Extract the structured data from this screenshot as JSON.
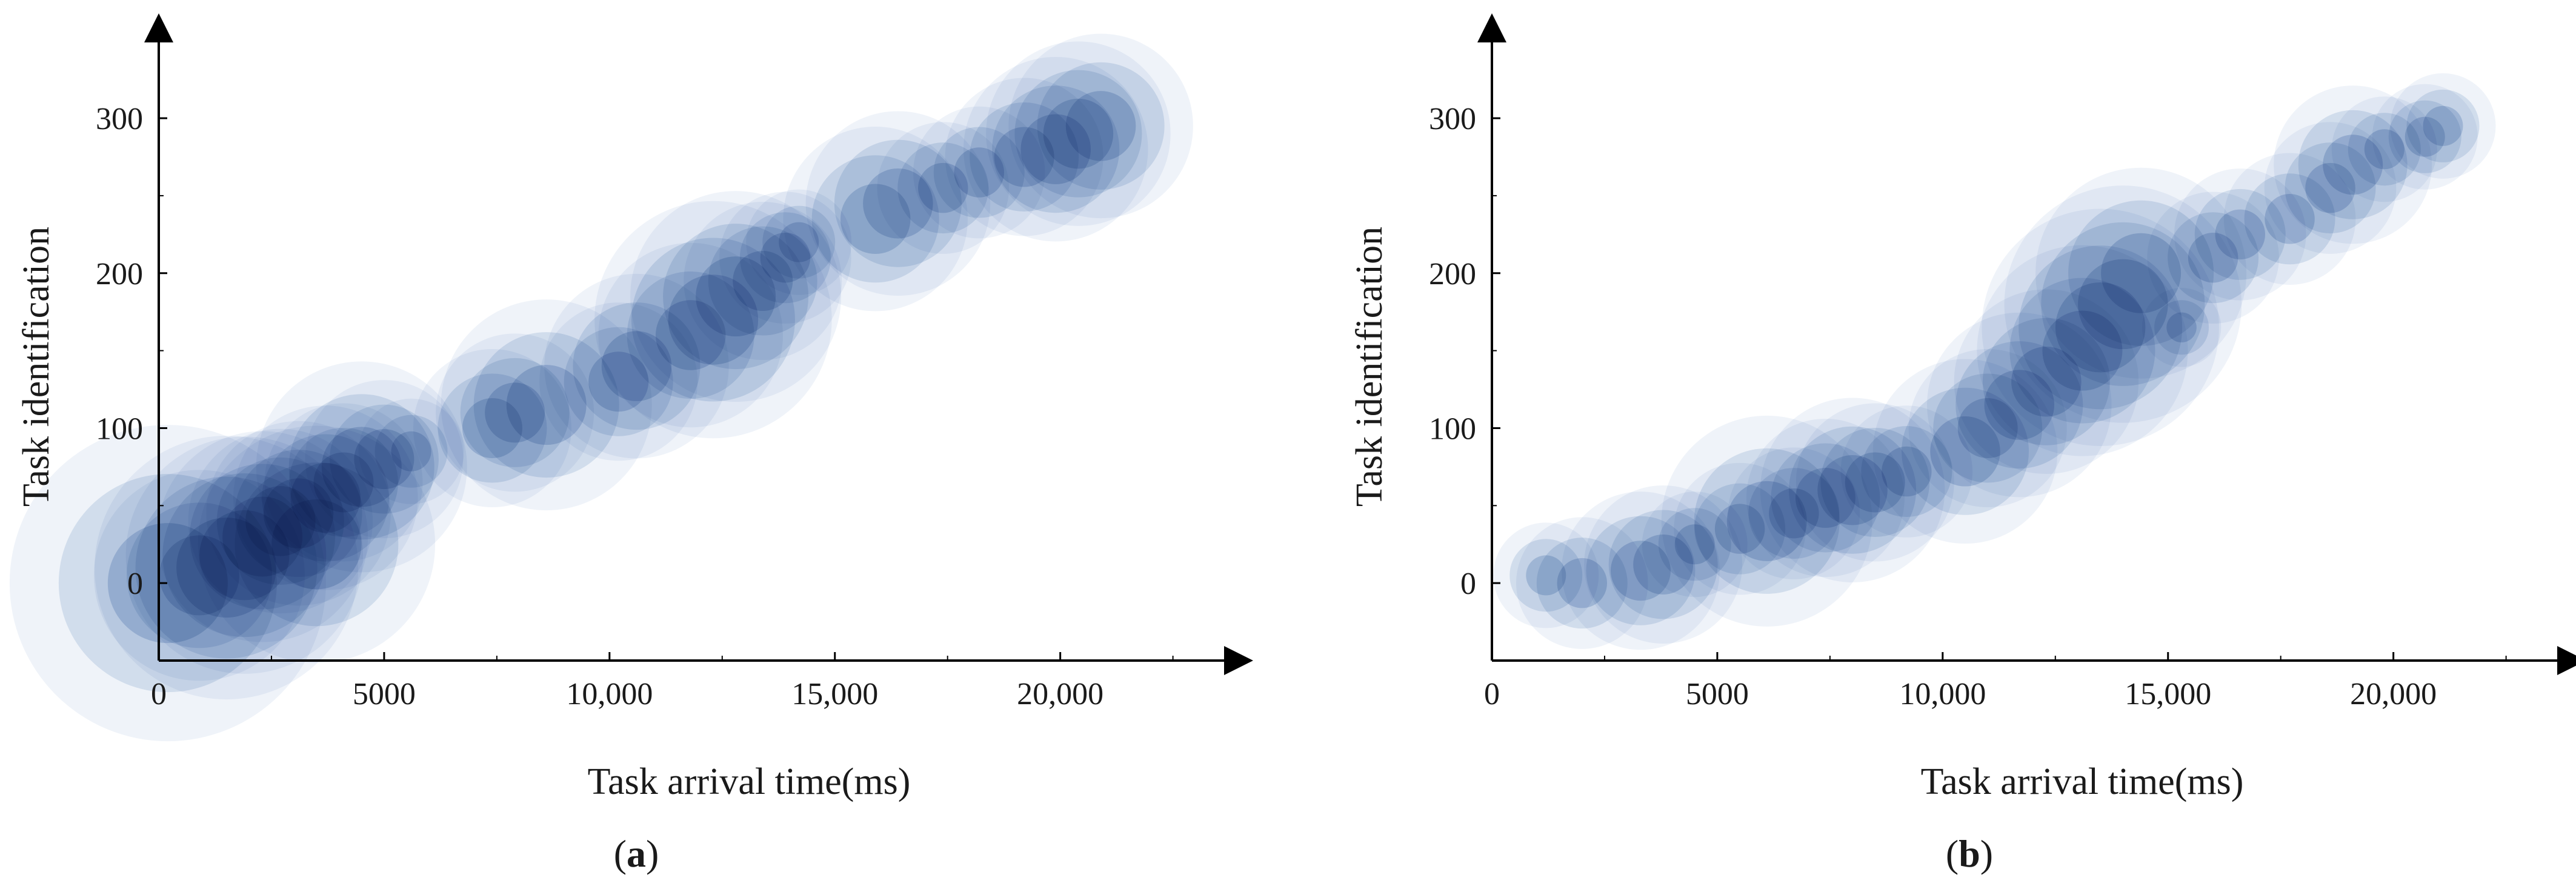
{
  "colors": {
    "bubble_fill": "#1f5aa6",
    "axis": "#000000",
    "text": "#1a1a1a"
  },
  "chart_data": [
    {
      "type": "scatter",
      "panel_label": "(a)",
      "panel_letter": "a",
      "xlabel": "Task arrival time(ms)",
      "ylabel": "Task identification",
      "xlim": [
        0,
        23500
      ],
      "ylim": [
        -50,
        345
      ],
      "x_ticks": [
        0,
        5000,
        10000,
        15000,
        20000
      ],
      "x_tick_labels": [
        "0",
        "5000",
        "10,000",
        "15,000",
        "20,000"
      ],
      "y_ticks": [
        0,
        100,
        200,
        300
      ],
      "y_tick_labels": [
        "0",
        "100",
        "200",
        "300"
      ],
      "grid": false,
      "legend": "none",
      "marker": "bubble",
      "points": [
        {
          "x": 200,
          "y": 0,
          "r": 60
        },
        {
          "x": 900,
          "y": 5,
          "r": 40
        },
        {
          "x": 1500,
          "y": 10,
          "r": 50
        },
        {
          "x": 1900,
          "y": 18,
          "r": 45
        },
        {
          "x": 2300,
          "y": 30,
          "r": 40
        },
        {
          "x": 2700,
          "y": 40,
          "r": 35
        },
        {
          "x": 3100,
          "y": 45,
          "r": 35
        },
        {
          "x": 3500,
          "y": 25,
          "r": 45
        },
        {
          "x": 3700,
          "y": 55,
          "r": 35
        },
        {
          "x": 4100,
          "y": 65,
          "r": 30
        },
        {
          "x": 4500,
          "y": 75,
          "r": 40
        },
        {
          "x": 5000,
          "y": 80,
          "r": 30
        },
        {
          "x": 5600,
          "y": 85,
          "r": 20
        },
        {
          "x": 7400,
          "y": 100,
          "r": 30
        },
        {
          "x": 7900,
          "y": 110,
          "r": 30
        },
        {
          "x": 8600,
          "y": 115,
          "r": 40
        },
        {
          "x": 10200,
          "y": 130,
          "r": 30
        },
        {
          "x": 10600,
          "y": 140,
          "r": 35
        },
        {
          "x": 11800,
          "y": 160,
          "r": 35
        },
        {
          "x": 12300,
          "y": 170,
          "r": 45
        },
        {
          "x": 12800,
          "y": 185,
          "r": 40
        },
        {
          "x": 13400,
          "y": 195,
          "r": 30
        },
        {
          "x": 13900,
          "y": 210,
          "r": 25
        },
        {
          "x": 14200,
          "y": 220,
          "r": 20
        },
        {
          "x": 15900,
          "y": 235,
          "r": 35
        },
        {
          "x": 16400,
          "y": 245,
          "r": 35
        },
        {
          "x": 17400,
          "y": 255,
          "r": 25
        },
        {
          "x": 18200,
          "y": 265,
          "r": 25
        },
        {
          "x": 19200,
          "y": 275,
          "r": 30
        },
        {
          "x": 19900,
          "y": 280,
          "r": 35
        },
        {
          "x": 20400,
          "y": 290,
          "r": 35
        },
        {
          "x": 20900,
          "y": 295,
          "r": 35
        }
      ]
    },
    {
      "type": "scatter",
      "panel_label": "(b)",
      "panel_letter": "b",
      "xlabel": "Task arrival time(ms)",
      "ylabel": "Task identification",
      "xlim": [
        0,
        23500
      ],
      "ylim": [
        -50,
        345
      ],
      "x_ticks": [
        0,
        5000,
        10000,
        15000,
        20000
      ],
      "x_tick_labels": [
        "0",
        "5000",
        "10,000",
        "15,000",
        "20,000"
      ],
      "y_ticks": [
        0,
        100,
        200,
        300
      ],
      "y_tick_labels": [
        "0",
        "100",
        "200",
        "300"
      ],
      "grid": false,
      "legend": "none",
      "marker": "bubble",
      "points": [
        {
          "x": 1200,
          "y": 5,
          "r": 20
        },
        {
          "x": 2000,
          "y": 0,
          "r": 25
        },
        {
          "x": 3300,
          "y": 8,
          "r": 30
        },
        {
          "x": 3800,
          "y": 12,
          "r": 30
        },
        {
          "x": 4500,
          "y": 25,
          "r": 20
        },
        {
          "x": 5500,
          "y": 35,
          "r": 25
        },
        {
          "x": 6100,
          "y": 40,
          "r": 40
        },
        {
          "x": 6700,
          "y": 45,
          "r": 25
        },
        {
          "x": 7400,
          "y": 55,
          "r": 30
        },
        {
          "x": 8000,
          "y": 60,
          "r": 35
        },
        {
          "x": 8500,
          "y": 65,
          "r": 30
        },
        {
          "x": 9200,
          "y": 72,
          "r": 25
        },
        {
          "x": 10500,
          "y": 85,
          "r": 35
        },
        {
          "x": 11000,
          "y": 100,
          "r": 30
        },
        {
          "x": 11700,
          "y": 115,
          "r": 35
        },
        {
          "x": 12300,
          "y": 130,
          "r": 35
        },
        {
          "x": 13100,
          "y": 150,
          "r": 40
        },
        {
          "x": 13500,
          "y": 165,
          "r": 45
        },
        {
          "x": 14000,
          "y": 180,
          "r": 45
        },
        {
          "x": 14400,
          "y": 200,
          "r": 40
        },
        {
          "x": 15300,
          "y": 165,
          "r": 15
        },
        {
          "x": 16000,
          "y": 210,
          "r": 25
        },
        {
          "x": 16600,
          "y": 225,
          "r": 25
        },
        {
          "x": 17700,
          "y": 235,
          "r": 25
        },
        {
          "x": 18600,
          "y": 255,
          "r": 25
        },
        {
          "x": 19100,
          "y": 270,
          "r": 30
        },
        {
          "x": 19800,
          "y": 280,
          "r": 20
        },
        {
          "x": 20700,
          "y": 288,
          "r": 20
        },
        {
          "x": 21100,
          "y": 295,
          "r": 20
        }
      ]
    }
  ]
}
